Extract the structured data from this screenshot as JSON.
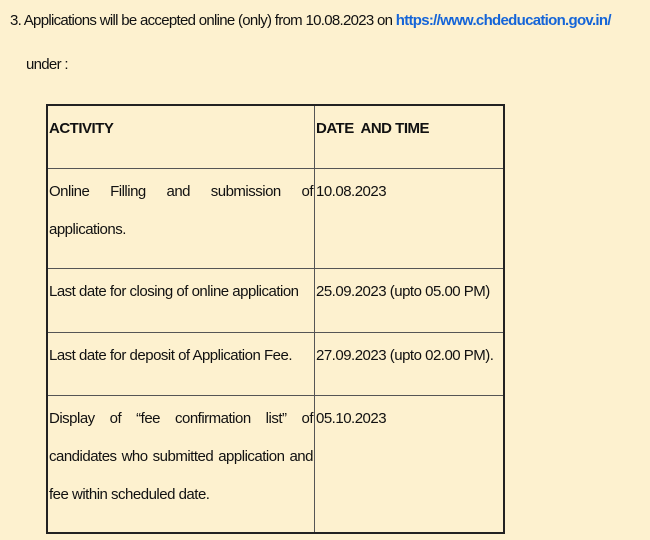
{
  "intro": {
    "text_before": "3. Applications will be accepted online (only) from 10.08.2023 on ",
    "link": "https://www.chdeducation.gov.in/",
    "text_after": "under :"
  },
  "table": {
    "headers": [
      "ACTIVITY",
      "DATE  AND TIME"
    ],
    "rows": [
      {
        "activity": "Online Filling and submission of applications.",
        "date": "10.08.2023"
      },
      {
        "activity": "Last date for closing of online application",
        "date": "25.09.2023  (upto 05.00 PM)"
      },
      {
        "activity": "Last date for deposit of Application Fee.",
        "date": "27.09.2023 (upto 02.00 PM)."
      },
      {
        "activity": "Display of “fee confirmation list” of candidates who submitted application and fee within scheduled date.",
        "date": "05.10.2023"
      }
    ]
  }
}
